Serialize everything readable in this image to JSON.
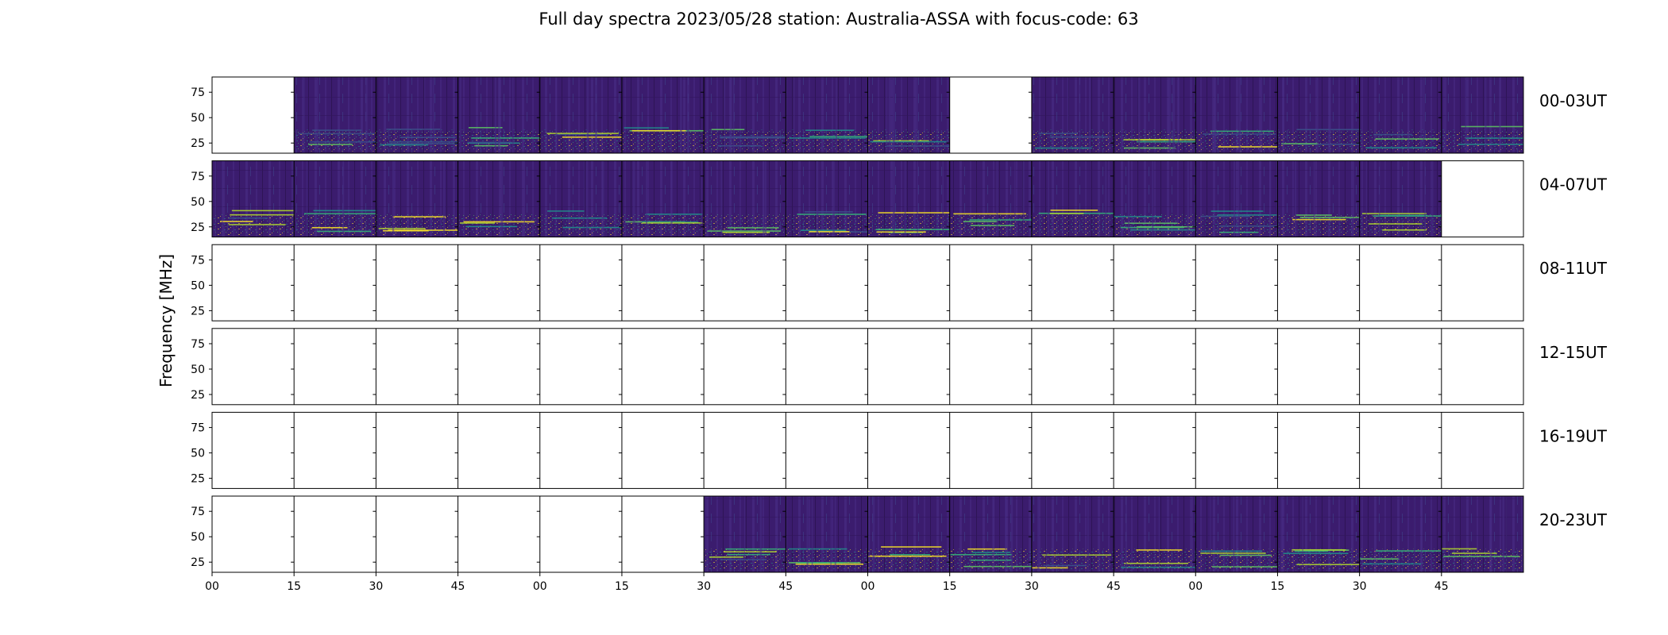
{
  "chart_data": {
    "type": "heatmap",
    "title": "Full day spectra 2023/05/28 station: Australia-ASSA with focus-code: 63",
    "ylabel": "Frequency [MHz]",
    "xlabel": "",
    "ylim": [
      15,
      90
    ],
    "yticks": [
      25,
      50,
      75
    ],
    "xtick_labels": [
      "00",
      "15",
      "30",
      "45",
      "00",
      "15",
      "30",
      "45",
      "00",
      "15",
      "30",
      "45",
      "00",
      "15",
      "30",
      "45"
    ],
    "colormap": "viridis",
    "panels_per_row": 16,
    "panel_minutes": 15,
    "rows": [
      {
        "label": "00-03UT",
        "has_data": [
          false,
          true,
          true,
          true,
          true,
          true,
          true,
          true,
          true,
          false,
          true,
          true,
          true,
          true,
          true,
          true
        ]
      },
      {
        "label": "04-07UT",
        "has_data": [
          true,
          true,
          true,
          true,
          true,
          true,
          true,
          true,
          true,
          true,
          true,
          true,
          true,
          true,
          true,
          false
        ]
      },
      {
        "label": "08-11UT",
        "has_data": [
          false,
          false,
          false,
          false,
          false,
          false,
          false,
          false,
          false,
          false,
          false,
          false,
          false,
          false,
          false,
          false
        ]
      },
      {
        "label": "12-15UT",
        "has_data": [
          false,
          false,
          false,
          false,
          false,
          false,
          false,
          false,
          false,
          false,
          false,
          false,
          false,
          false,
          false,
          false
        ]
      },
      {
        "label": "16-19UT",
        "has_data": [
          false,
          false,
          false,
          false,
          false,
          false,
          false,
          false,
          false,
          false,
          false,
          false,
          false,
          false,
          false,
          false
        ]
      },
      {
        "label": "20-23UT",
        "has_data": [
          false,
          false,
          false,
          false,
          false,
          false,
          true,
          true,
          true,
          true,
          true,
          true,
          true,
          true,
          true,
          true
        ]
      }
    ]
  }
}
